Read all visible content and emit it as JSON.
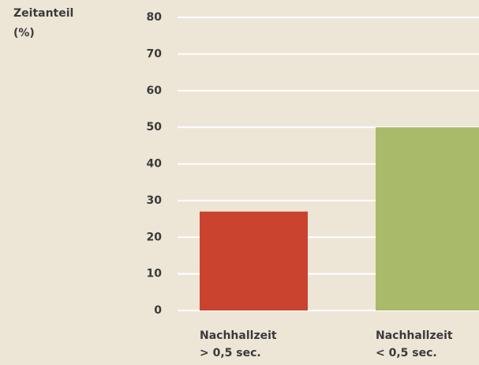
{
  "chart_data": {
    "type": "bar",
    "ylabel": [
      "Zeitanteil",
      "(%)"
    ],
    "categories": [
      [
        "Nachhallzeit",
        "> 0,5 sec."
      ],
      [
        "Nachhallzeit",
        "< 0,5 sec."
      ]
    ],
    "values": [
      27,
      50
    ],
    "colors": [
      "#c9432f",
      "#a9bb6b"
    ],
    "ylim": [
      0,
      80
    ],
    "yticks": [
      0,
      10,
      20,
      30,
      40,
      50,
      60,
      70,
      80
    ],
    "grid": true
  }
}
